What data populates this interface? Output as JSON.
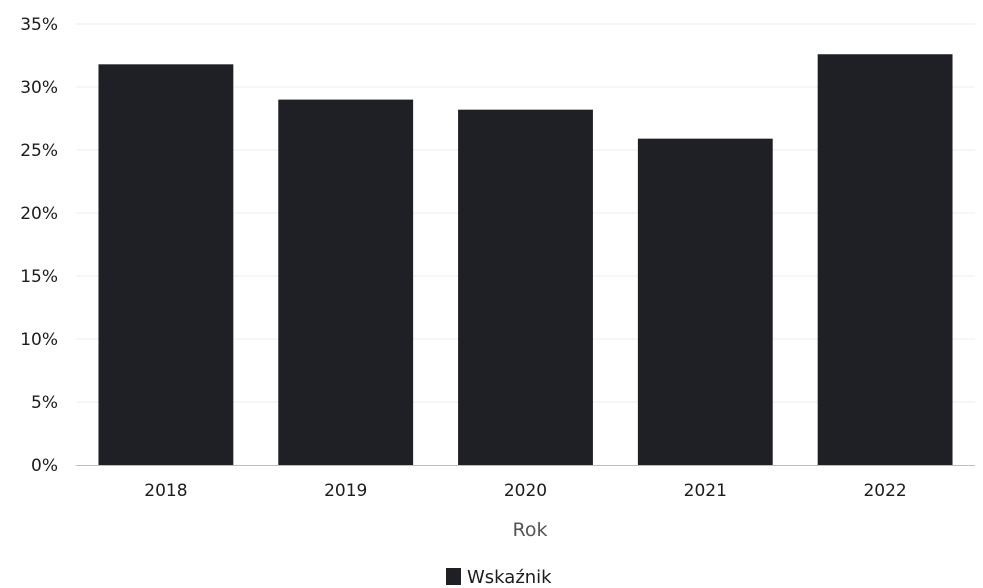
{
  "chart_data": {
    "type": "bar",
    "categories": [
      "2018",
      "2019",
      "2020",
      "2021",
      "2022"
    ],
    "series": [
      {
        "name": "Wskaźnik",
        "values": [
          31.8,
          29.0,
          28.2,
          25.9,
          32.6
        ]
      }
    ],
    "title": "",
    "xlabel": "Rok",
    "ylabel": "",
    "ylim": [
      0,
      35
    ],
    "yticks": [
      "0%",
      "5%",
      "10%",
      "15%",
      "20%",
      "25%",
      "30%",
      "35%"
    ],
    "grid": true,
    "legend": "bottom-center",
    "colors": {
      "bar": "#1f2026",
      "grid": "#eeeeee",
      "axis": "#bdbdbd"
    }
  }
}
